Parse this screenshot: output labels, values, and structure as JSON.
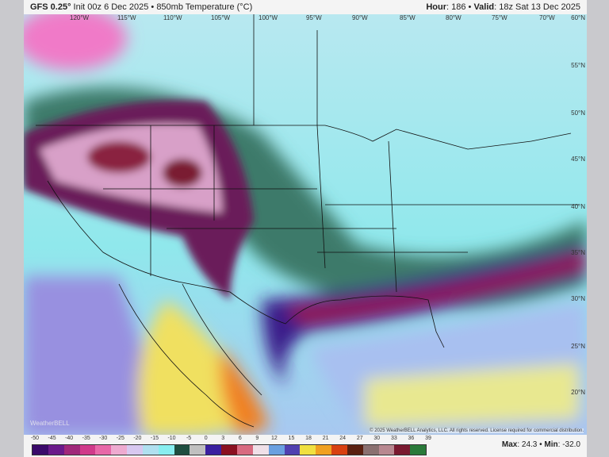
{
  "header": {
    "model": "GFS 0.25°",
    "init": "Init 00z 6 Dec 2025",
    "product": "850mb Temperature (°C)",
    "hour_label": "Hour",
    "hour": "186",
    "valid_label": "Valid",
    "valid": "18z Sat 13 Dec 2025"
  },
  "map": {
    "longitudes": [
      "120°W",
      "115°W",
      "110°W",
      "105°W",
      "100°W",
      "95°W",
      "90°W",
      "85°W",
      "80°W",
      "75°W",
      "70°W"
    ],
    "latitudes": [
      "60°N",
      "55°N",
      "50°N",
      "45°N",
      "40°N",
      "35°N",
      "30°N",
      "25°N",
      "20°N"
    ],
    "copyright": "© 2025 WeatherBELL Analytics, LLC. All rights reserved. License required for commercial distribution.",
    "logo": "WeatherBELL"
  },
  "colorbar": {
    "ticks": [
      "-50",
      "-45",
      "-40",
      "-35",
      "-30",
      "-25",
      "-20",
      "-15",
      "-10",
      "-5",
      "0",
      "3",
      "6",
      "9",
      "12",
      "15",
      "18",
      "21",
      "24",
      "27",
      "30",
      "33",
      "36",
      "39"
    ],
    "colors": [
      "#3a0a6a",
      "#6a1a8a",
      "#a0287a",
      "#d03a8a",
      "#e868a8",
      "#eeaad0",
      "#d8c8f0",
      "#b0e0f0",
      "#88eef0",
      "#1e4e40",
      "#c0c0c0",
      "#3a20a0",
      "#8a1020",
      "#d86a80",
      "#f0e0e8",
      "#6aa0e0",
      "#5040b0",
      "#f0e040",
      "#f0a020",
      "#d84010",
      "#5a2010",
      "#8a7070",
      "#b88890",
      "#7a1a30",
      "#2a7a3a"
    ]
  },
  "stats": {
    "max_label": "Max",
    "max": "24.3",
    "min_label": "Min",
    "min": "-32.0"
  }
}
